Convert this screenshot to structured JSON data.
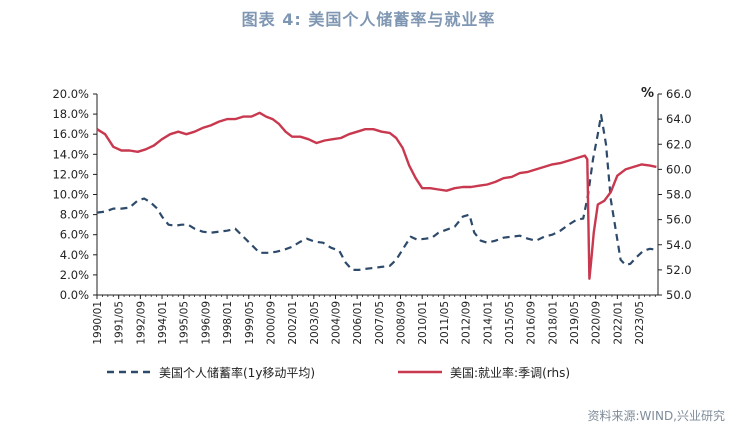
{
  "title": "图表 4:  美国个人储蓄率与就业率",
  "source": "资料来源:WIND,兴业研究",
  "chart_data": {
    "type": "line",
    "title": "图表 4:  美国个人储蓄率与就业率",
    "left_axis": {
      "min": 0,
      "max": 20,
      "step": 2,
      "tick_labels": [
        "0.0%",
        "2.0%",
        "4.0%",
        "6.0%",
        "8.0%",
        "10.0%",
        "12.0%",
        "14.0%",
        "16.0%",
        "18.0%",
        "20.0%"
      ]
    },
    "right_axis": {
      "unit": "%",
      "min": 50,
      "max": 66,
      "step": 2,
      "tick_labels": [
        "50.0",
        "52.0",
        "54.0",
        "56.0",
        "58.0",
        "60.0",
        "62.0",
        "64.0",
        "66.0"
      ]
    },
    "x_range": [
      1990.0,
      2024.5
    ],
    "x_tick_labels": [
      "1990/01",
      "1991/05",
      "1992/09",
      "1994/01",
      "1995/05",
      "1996/09",
      "1998/01",
      "1999/05",
      "2000/09",
      "2002/01",
      "2003/05",
      "2004/09",
      "2006/01",
      "2007/05",
      "2008/09",
      "2010/01",
      "2011/05",
      "2012/09",
      "2014/01",
      "2015/05",
      "2016/09",
      "2018/01",
      "2019/05",
      "2020/09",
      "2022/01",
      "2023/05"
    ],
    "series": [
      {
        "name": "美国个人储蓄率(1y移动平均)",
        "axis": "left",
        "color": "#2e4a6b",
        "style": "dashed",
        "points": [
          [
            1990.0,
            8.2
          ],
          [
            1990.5,
            8.3
          ],
          [
            1991.0,
            8.6
          ],
          [
            1991.5,
            8.6
          ],
          [
            1992.0,
            8.7
          ],
          [
            1992.5,
            9.4
          ],
          [
            1992.9,
            9.6
          ],
          [
            1993.3,
            9.2
          ],
          [
            1993.7,
            8.6
          ],
          [
            1994.0,
            7.8
          ],
          [
            1994.4,
            7.0
          ],
          [
            1994.8,
            6.9
          ],
          [
            1995.2,
            7.0
          ],
          [
            1995.6,
            7.0
          ],
          [
            1996.0,
            6.6
          ],
          [
            1996.5,
            6.3
          ],
          [
            1997.0,
            6.2
          ],
          [
            1997.5,
            6.3
          ],
          [
            1998.0,
            6.4
          ],
          [
            1998.5,
            6.6
          ],
          [
            1999.0,
            5.8
          ],
          [
            1999.5,
            5.0
          ],
          [
            2000.0,
            4.2
          ],
          [
            2000.5,
            4.2
          ],
          [
            2001.0,
            4.3
          ],
          [
            2001.5,
            4.5
          ],
          [
            2002.0,
            4.8
          ],
          [
            2002.5,
            5.3
          ],
          [
            2002.9,
            5.6
          ],
          [
            2003.4,
            5.3
          ],
          [
            2003.9,
            5.2
          ],
          [
            2004.4,
            4.7
          ],
          [
            2004.9,
            4.4
          ],
          [
            2005.3,
            3.2
          ],
          [
            2005.7,
            2.5
          ],
          [
            2006.1,
            2.5
          ],
          [
            2006.5,
            2.6
          ],
          [
            2007.0,
            2.7
          ],
          [
            2007.5,
            2.8
          ],
          [
            2008.0,
            2.9
          ],
          [
            2008.4,
            3.5
          ],
          [
            2008.9,
            4.8
          ],
          [
            2009.3,
            5.8
          ],
          [
            2009.7,
            5.5
          ],
          [
            2010.2,
            5.6
          ],
          [
            2010.6,
            5.7
          ],
          [
            2011.0,
            6.2
          ],
          [
            2011.5,
            6.5
          ],
          [
            2012.0,
            6.8
          ],
          [
            2012.5,
            7.8
          ],
          [
            2012.9,
            8.0
          ],
          [
            2013.2,
            6.2
          ],
          [
            2013.6,
            5.4
          ],
          [
            2014.0,
            5.2
          ],
          [
            2014.5,
            5.4
          ],
          [
            2015.0,
            5.7
          ],
          [
            2015.5,
            5.8
          ],
          [
            2016.0,
            5.9
          ],
          [
            2016.5,
            5.6
          ],
          [
            2017.0,
            5.4
          ],
          [
            2017.5,
            5.8
          ],
          [
            2018.0,
            6.0
          ],
          [
            2018.5,
            6.4
          ],
          [
            2019.0,
            7.0
          ],
          [
            2019.5,
            7.5
          ],
          [
            2019.9,
            7.6
          ],
          [
            2020.2,
            10.0
          ],
          [
            2020.5,
            13.5
          ],
          [
            2020.8,
            16.0
          ],
          [
            2021.0,
            17.9
          ],
          [
            2021.3,
            15.0
          ],
          [
            2021.6,
            9.5
          ],
          [
            2021.9,
            6.5
          ],
          [
            2022.2,
            3.5
          ],
          [
            2022.5,
            3.0
          ],
          [
            2022.8,
            3.1
          ],
          [
            2023.2,
            3.8
          ],
          [
            2023.6,
            4.4
          ],
          [
            2024.0,
            4.6
          ],
          [
            2024.4,
            4.5
          ]
        ]
      },
      {
        "name": "美国:就业率:季调(rhs)",
        "axis": "right",
        "color": "#c8394f",
        "style": "solid",
        "points": [
          [
            1990.0,
            63.2
          ],
          [
            1990.5,
            62.8
          ],
          [
            1991.0,
            61.8
          ],
          [
            1991.5,
            61.5
          ],
          [
            1992.0,
            61.5
          ],
          [
            1992.5,
            61.4
          ],
          [
            1993.0,
            61.6
          ],
          [
            1993.5,
            61.9
          ],
          [
            1994.0,
            62.4
          ],
          [
            1994.5,
            62.8
          ],
          [
            1995.0,
            63.0
          ],
          [
            1995.5,
            62.8
          ],
          [
            1996.0,
            63.0
          ],
          [
            1996.5,
            63.3
          ],
          [
            1997.0,
            63.5
          ],
          [
            1997.5,
            63.8
          ],
          [
            1998.0,
            64.0
          ],
          [
            1998.5,
            64.0
          ],
          [
            1999.0,
            64.2
          ],
          [
            1999.5,
            64.2
          ],
          [
            2000.0,
            64.5
          ],
          [
            2000.4,
            64.2
          ],
          [
            2000.8,
            64.0
          ],
          [
            2001.2,
            63.6
          ],
          [
            2001.6,
            63.0
          ],
          [
            2002.0,
            62.6
          ],
          [
            2002.5,
            62.6
          ],
          [
            2003.0,
            62.4
          ],
          [
            2003.5,
            62.1
          ],
          [
            2004.0,
            62.3
          ],
          [
            2004.5,
            62.4
          ],
          [
            2005.0,
            62.5
          ],
          [
            2005.5,
            62.8
          ],
          [
            2006.0,
            63.0
          ],
          [
            2006.5,
            63.2
          ],
          [
            2007.0,
            63.2
          ],
          [
            2007.5,
            63.0
          ],
          [
            2008.0,
            62.9
          ],
          [
            2008.4,
            62.5
          ],
          [
            2008.8,
            61.7
          ],
          [
            2009.2,
            60.3
          ],
          [
            2009.6,
            59.3
          ],
          [
            2010.0,
            58.5
          ],
          [
            2010.5,
            58.5
          ],
          [
            2011.0,
            58.4
          ],
          [
            2011.5,
            58.3
          ],
          [
            2012.0,
            58.5
          ],
          [
            2012.5,
            58.6
          ],
          [
            2013.0,
            58.6
          ],
          [
            2013.5,
            58.7
          ],
          [
            2014.0,
            58.8
          ],
          [
            2014.5,
            59.0
          ],
          [
            2015.0,
            59.3
          ],
          [
            2015.5,
            59.4
          ],
          [
            2016.0,
            59.7
          ],
          [
            2016.5,
            59.8
          ],
          [
            2017.0,
            60.0
          ],
          [
            2017.5,
            60.2
          ],
          [
            2018.0,
            60.4
          ],
          [
            2018.5,
            60.5
          ],
          [
            2019.0,
            60.7
          ],
          [
            2019.5,
            60.9
          ],
          [
            2020.0,
            61.1
          ],
          [
            2020.15,
            60.8
          ],
          [
            2020.28,
            51.3
          ],
          [
            2020.4,
            52.8
          ],
          [
            2020.55,
            55.0
          ],
          [
            2020.8,
            57.2
          ],
          [
            2021.2,
            57.5
          ],
          [
            2021.6,
            58.2
          ],
          [
            2022.0,
            59.5
          ],
          [
            2022.5,
            60.0
          ],
          [
            2023.0,
            60.2
          ],
          [
            2023.5,
            60.4
          ],
          [
            2024.0,
            60.3
          ],
          [
            2024.4,
            60.2
          ]
        ]
      }
    ],
    "legend": [
      {
        "label": "美国个人储蓄率(1y移动平均)",
        "style": "dashed",
        "color": "#2e4a6b"
      },
      {
        "label": "美国:就业率:季调(rhs)",
        "style": "solid",
        "color": "#c8394f"
      }
    ]
  }
}
